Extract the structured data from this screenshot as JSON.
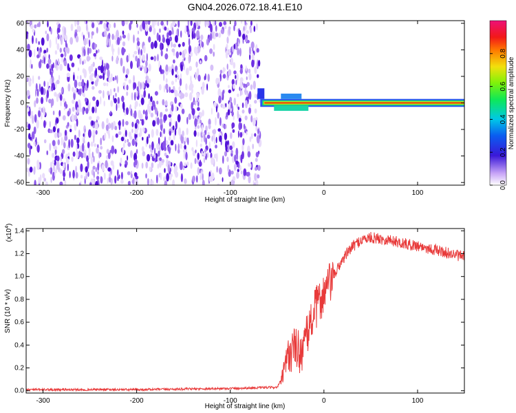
{
  "title": "GN04.2026.072.18.41.E10",
  "chart_data": [
    {
      "type": "heatmap",
      "xlabel": "Height of straight line (km)",
      "ylabel": "Frequency (Hz)",
      "xlim": [
        -318,
        150
      ],
      "ylim": [
        -62,
        62
      ],
      "xticks": [
        -300,
        -200,
        -100,
        0,
        100
      ],
      "yticks": [
        -60,
        -40,
        -20,
        0,
        20,
        40,
        60
      ],
      "noise_region_x": [
        -318,
        -68
      ],
      "signal_band": {
        "x_start": -68,
        "x_end": 150,
        "center_freq_hz": 0,
        "halfwidth_hz": 3
      }
    },
    {
      "type": "line",
      "xlabel": "Height of straight line (km)",
      "ylabel": "SNR (10 * v/v)",
      "y_multiplier": "(x10^4)",
      "xlim": [
        -318,
        150
      ],
      "ylim": [
        -0.02,
        1.42
      ],
      "xticks": [
        -300,
        -200,
        -100,
        0,
        100
      ],
      "yticks": [
        0.0,
        0.2,
        0.4,
        0.6,
        0.8,
        1.0,
        1.2,
        1.4
      ],
      "color": "#e83a3a",
      "series": [
        {
          "x": [
            -318,
            -200,
            -100,
            -50,
            -45,
            -40,
            -35,
            -30,
            -25,
            -20,
            -15,
            -10,
            -5,
            0,
            10,
            20,
            30,
            40,
            50,
            60,
            70,
            80,
            90,
            100,
            110,
            120,
            130,
            140,
            150
          ],
          "values": [
            0.01,
            0.01,
            0.02,
            0.03,
            0.1,
            0.25,
            0.35,
            0.38,
            0.33,
            0.42,
            0.58,
            0.7,
            0.78,
            0.85,
            1.0,
            1.15,
            1.26,
            1.32,
            1.34,
            1.33,
            1.32,
            1.3,
            1.28,
            1.27,
            1.25,
            1.23,
            1.21,
            1.19,
            1.17
          ]
        }
      ]
    }
  ],
  "colorbar": {
    "label": "Normalized spectral amplitude",
    "ticks": [
      0.0,
      0.2,
      0.4,
      0.6,
      0.8
    ]
  }
}
